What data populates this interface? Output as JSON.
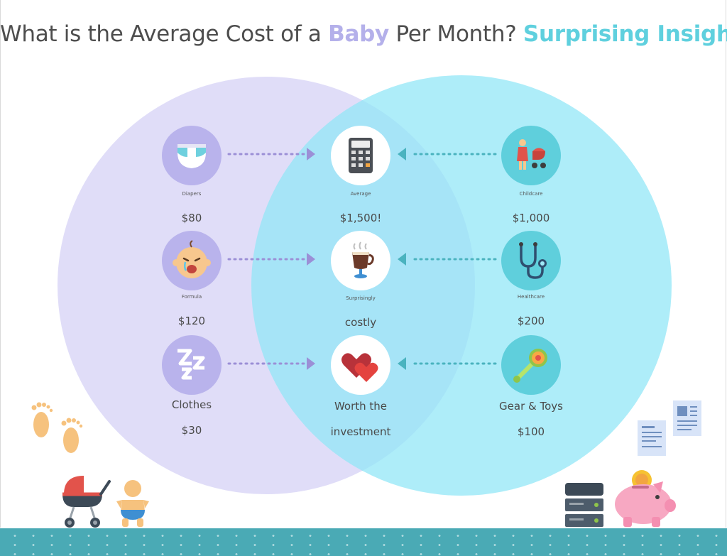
{
  "title": {
    "part1": "What is the Average Cost of a ",
    "highlight1": "Baby",
    "part2": " Per Month? ",
    "highlight2": "Surprising Insights"
  },
  "colors": {
    "left_circle": "#d9d6f7",
    "right_circle": "#9fe9f7",
    "left_node": "#b9b3ec",
    "right_node": "#5fcfdc",
    "arrow_left": "#9b8fd6",
    "arrow_right": "#4ab3bf",
    "floor": "#4aaab5"
  },
  "left": [
    {
      "icon": "diaper-icon",
      "label": "Diapers",
      "value": "$80"
    },
    {
      "icon": "crying-baby-icon",
      "label": "Formula",
      "value": "$120"
    },
    {
      "icon": "sleep-zzz-icon",
      "label": "Clothes",
      "value": "$30"
    }
  ],
  "center": [
    {
      "icon": "calculator-icon",
      "label": "Average",
      "value": "$1,500!"
    },
    {
      "icon": "hot-drink-icon",
      "label": "Surprisingly",
      "value": "costly"
    },
    {
      "icon": "hearts-icon",
      "label": "Worth the",
      "value": "investment"
    }
  ],
  "right": [
    {
      "icon": "mother-stroller-icon",
      "label": "Childcare",
      "value": "$1,000"
    },
    {
      "icon": "stethoscope-icon",
      "label": "Healthcare",
      "value": "$200"
    },
    {
      "icon": "rattle-icon",
      "label": "Gear & Toys",
      "value": "$100"
    }
  ]
}
